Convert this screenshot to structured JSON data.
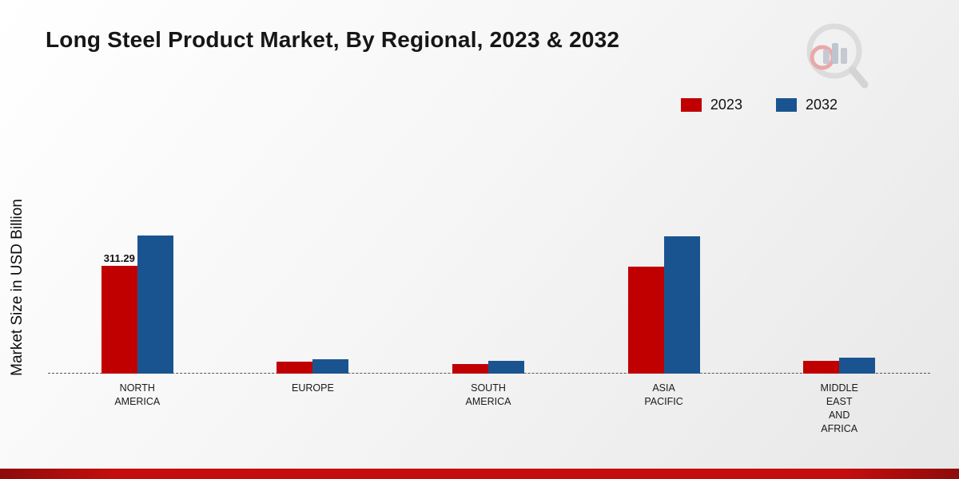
{
  "title": "Long Steel Product Market, By Regional, 2023 & 2032",
  "ylabel": "Market Size in USD Billion",
  "legend": [
    {
      "label": "2023",
      "color": "#c00000"
    },
    {
      "label": "2032",
      "color": "#1a5490"
    }
  ],
  "chart_data": {
    "type": "bar",
    "title": "Long Steel Product Market, By Regional, 2023 & 2032",
    "xlabel": "",
    "ylabel": "Market Size in USD Billion",
    "categories": [
      [
        "NORTH",
        "AMERICA"
      ],
      [
        "EUROPE"
      ],
      [
        "SOUTH",
        "AMERICA"
      ],
      [
        "ASIA",
        "PACIFIC"
      ],
      [
        "MIDDLE",
        "EAST",
        "AND",
        "AFRICA"
      ]
    ],
    "series": [
      {
        "name": "2023",
        "color": "#c00000",
        "values": [
          311.29,
          35,
          28,
          310,
          36
        ],
        "data_labels": [
          "311.29",
          "",
          "",
          "",
          ""
        ]
      },
      {
        "name": "2032",
        "color": "#1a5490",
        "values": [
          400,
          42,
          38,
          398,
          46
        ],
        "data_labels": [
          "",
          "",
          "",
          "",
          ""
        ]
      }
    ],
    "ylim": [
      0,
      450
    ],
    "grid": false,
    "legend_position": "top-right",
    "baseline_style": "dashed"
  },
  "footer": {
    "accent_color": "#c60d0d"
  }
}
